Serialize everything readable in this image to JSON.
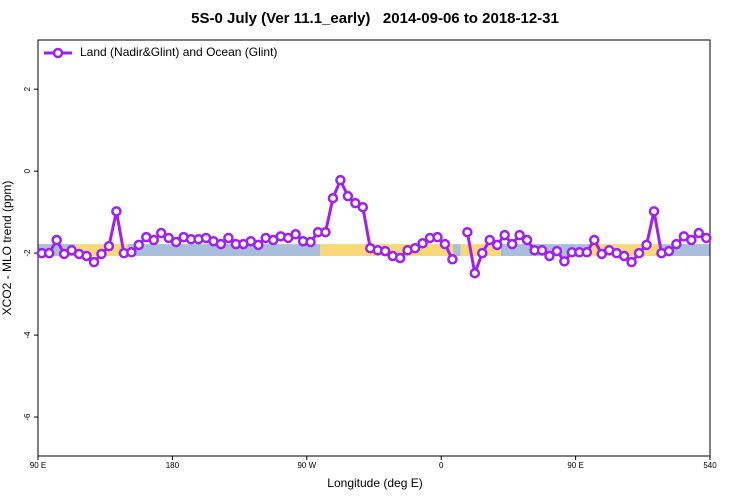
{
  "chart_data": {
    "type": "line",
    "title": "5S-0 July (Ver 11.1_early)   2014-09-06 to 2018-12-31",
    "xlabel": "Longitude (deg E)",
    "ylabel": "XCO2 - MLO trend (ppm)",
    "x": [
      92.5,
      97.5,
      102.5,
      107.5,
      112.5,
      117.5,
      122.5,
      127.5,
      132.5,
      137.5,
      142.5,
      147.5,
      152.5,
      157.5,
      162.5,
      167.5,
      172.5,
      177.5,
      182.5,
      187.5,
      192.5,
      197.5,
      202.5,
      207.5,
      212.5,
      217.5,
      222.5,
      227.5,
      232.5,
      237.5,
      242.5,
      247.5,
      252.5,
      257.5,
      262.5,
      267.5,
      272.5,
      277.5,
      282.5,
      287.5,
      292.5,
      297.5,
      302.5,
      307.5,
      312.5,
      317.5,
      322.5,
      327.5,
      332.5,
      337.5,
      342.5,
      347.5,
      352.5,
      357.5,
      362.5,
      367.5,
      372.5,
      377.5,
      382.5,
      387.5,
      392.5,
      397.5,
      402.5,
      407.5,
      412.5,
      417.5,
      422.5,
      427.5,
      432.5,
      437.5,
      442.5,
      447.5,
      452.5,
      457.5,
      462.5,
      467.5,
      472.5,
      477.5,
      482.5,
      487.5,
      492.5,
      497.5,
      502.5,
      507.5,
      512.5,
      517.5,
      522.5,
      527.5,
      532.5,
      537.5
    ],
    "series": [
      {
        "name": "Land (Nadir&Glint) and Ocean (Glint)",
        "color": "#a020f0",
        "values": [
          -2.0,
          -2.0,
          -1.68,
          -2.02,
          -1.93,
          -2.02,
          -2.07,
          -2.22,
          -2.02,
          -1.83,
          -0.98,
          -2.0,
          -1.98,
          -1.8,
          -1.61,
          -1.68,
          -1.51,
          -1.63,
          -1.73,
          -1.61,
          -1.66,
          -1.66,
          -1.63,
          -1.71,
          -1.78,
          -1.63,
          -1.78,
          -1.78,
          -1.71,
          -1.8,
          -1.63,
          -1.68,
          -1.59,
          -1.63,
          -1.54,
          -1.71,
          -1.73,
          -1.49,
          -1.49,
          -0.66,
          -0.22,
          -0.61,
          -0.78,
          -0.88,
          -1.88,
          -1.93,
          -1.95,
          -2.07,
          -2.12,
          -1.93,
          -1.88,
          -1.76,
          -1.63,
          -1.61,
          -1.78,
          -2.15,
          null,
          -1.49,
          -2.49,
          -2.0,
          -1.68,
          -1.8,
          -1.56,
          -1.78,
          -1.56,
          -1.68,
          -1.93,
          -1.93,
          -2.07,
          -1.95,
          -2.2,
          -1.98,
          -1.98,
          -1.98,
          -1.68,
          -2.02,
          -1.93,
          -2.0,
          -2.07,
          -2.22,
          -2.0,
          -1.8,
          -0.98,
          -2.0,
          -1.95,
          -1.78,
          -1.59,
          -1.68,
          -1.51,
          -1.63
        ]
      }
    ],
    "bands": {
      "ylim": [
        -2.07,
        -1.78
      ],
      "segments": [
        {
          "x": [
            90,
            115
          ],
          "color": "#a9bedb"
        },
        {
          "x": [
            115,
            150
          ],
          "color": "#f8d878"
        },
        {
          "x": [
            150,
            279
          ],
          "color": "#a9bedb"
        },
        {
          "x": [
            279,
            368
          ],
          "color": "#f8d878"
        },
        {
          "x": [
            368,
            373
          ],
          "color": "#a9bedb"
        },
        {
          "x": [
            373,
            400
          ],
          "color": "#f8d878"
        },
        {
          "x": [
            400,
            460
          ],
          "color": "#a9bedb"
        },
        {
          "x": [
            460,
            506
          ],
          "color": "#f8d878"
        },
        {
          "x": [
            506,
            540
          ],
          "color": "#a9bedb"
        }
      ]
    },
    "xlim": [
      90,
      540
    ],
    "xticks": [
      {
        "value": 90,
        "label": "90 E"
      },
      180,
      {
        "value": 270,
        "label": "90 W"
      },
      {
        "value": 360,
        "label": "0"
      },
      {
        "value": 450,
        "label": "90 E"
      },
      540
    ],
    "ylim": [
      -6.95,
      3.2
    ],
    "yticks": [
      -6,
      -4,
      -2,
      0,
      2
    ],
    "legend": "top-left"
  }
}
